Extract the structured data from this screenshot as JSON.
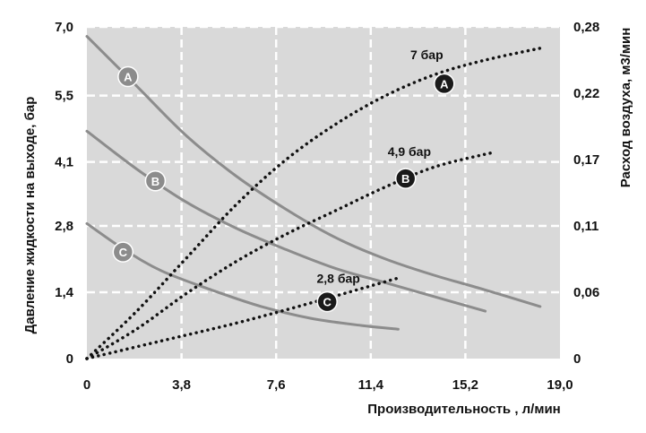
{
  "chart_data": {
    "type": "line",
    "xlabel": "Производительность , л/мин",
    "ylabel": "Давление жидкости на выходе, бар",
    "y2label": "Расход воздуха, м3/мин",
    "xlim": [
      0,
      19.0
    ],
    "ylim": [
      0,
      7.0
    ],
    "y2lim": [
      0,
      0.28
    ],
    "x_ticks": [
      "0",
      "3,8",
      "7,6",
      "11,4",
      "15,2",
      "19,0"
    ],
    "x_tick_values": [
      0,
      3.8,
      7.6,
      11.4,
      15.2,
      19.0
    ],
    "y_ticks": [
      "0",
      "1,4",
      "2,8",
      "4,1",
      "5,5",
      "7,0"
    ],
    "y_tick_values": [
      0,
      1.4,
      2.8,
      4.15,
      5.55,
      7.0
    ],
    "y2_ticks": [
      "0",
      "0,06",
      "0,11",
      "0,17",
      "0,22",
      "0,28"
    ],
    "y2_tick_values": [
      0,
      0.056,
      0.112,
      0.168,
      0.224,
      0.28
    ],
    "grid": true,
    "colors": {
      "plot_bg": "#d9d9d9",
      "grid": "#ffffff",
      "pressure": "#8c8c8c",
      "air": "#111111",
      "label_gray": "#8c8c8c",
      "label_dark": "#1a1a1a"
    },
    "pressure_series": [
      {
        "name": "A",
        "x": [
          0,
          2,
          4,
          6,
          8,
          10,
          12,
          14,
          16,
          18.2
        ],
        "y": [
          6.8,
          5.75,
          4.7,
          3.85,
          3.15,
          2.55,
          2.1,
          1.75,
          1.45,
          1.1
        ]
      },
      {
        "name": "B",
        "x": [
          0,
          2,
          4,
          6,
          8,
          10,
          12,
          14,
          16
        ],
        "y": [
          4.8,
          4.0,
          3.3,
          2.75,
          2.3,
          1.9,
          1.6,
          1.3,
          1.0
        ]
      },
      {
        "name": "C",
        "x": [
          0,
          1.5,
          3,
          5,
          7,
          9,
          11,
          12.5
        ],
        "y": [
          2.85,
          2.3,
          1.85,
          1.45,
          1.1,
          0.85,
          0.7,
          0.62
        ]
      }
    ],
    "air_series": [
      {
        "name": "A",
        "x": [
          0,
          2,
          4,
          6,
          8,
          10,
          12,
          14,
          16,
          18.2
        ],
        "y": [
          0.0,
          0.04,
          0.085,
          0.13,
          0.168,
          0.198,
          0.222,
          0.24,
          0.252,
          0.262
        ]
      },
      {
        "name": "B",
        "x": [
          0,
          2,
          4,
          6,
          8,
          10,
          12,
          14,
          16.3
        ],
        "y": [
          0.0,
          0.025,
          0.055,
          0.082,
          0.105,
          0.125,
          0.145,
          0.162,
          0.174
        ]
      },
      {
        "name": "C",
        "x": [
          0,
          3,
          6,
          9,
          12.5
        ],
        "y": [
          0.0,
          0.015,
          0.03,
          0.047,
          0.068
        ]
      }
    ],
    "curve_labels": [
      {
        "text": "A",
        "style": "gray",
        "x": 1.65,
        "y": 5.95
      },
      {
        "text": "B",
        "style": "gray",
        "x": 2.75,
        "y": 3.75
      },
      {
        "text": "C",
        "style": "gray",
        "x": 1.45,
        "y": 2.25
      },
      {
        "text": "A",
        "style": "dark",
        "x": 14.35,
        "y": 5.8
      },
      {
        "text": "B",
        "style": "dark",
        "x": 12.8,
        "y": 3.8
      },
      {
        "text": "C",
        "style": "dark",
        "x": 9.65,
        "y": 1.2
      }
    ],
    "annotations": [
      {
        "text": "7 бар",
        "x": 13.65,
        "y": 6.32
      },
      {
        "text": "4,9 бар",
        "x": 12.95,
        "y": 4.28
      },
      {
        "text": "2,8 бар",
        "x": 10.1,
        "y": 1.6
      }
    ]
  }
}
